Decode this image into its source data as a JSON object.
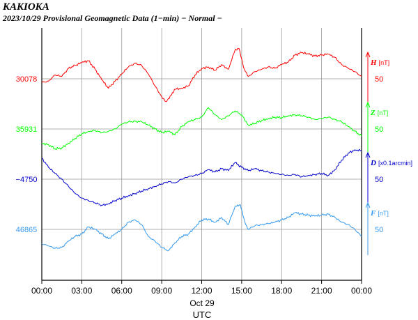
{
  "header": {
    "station": "KAKIOKA",
    "subtitle": "2023/10/29  Provisional Geomagnetic Data (1−min)  − Normal −"
  },
  "chart_data": {
    "type": "line",
    "xlabel": "UTC",
    "date_label": "Oct 29",
    "x_ticks": [
      "00:00",
      "03:00",
      "06:00",
      "09:00",
      "12:00",
      "15:00",
      "18:00",
      "21:00",
      "00:00"
    ],
    "x_range_hours": [
      0,
      24
    ],
    "grid": true,
    "series": [
      {
        "name": "H",
        "unit": "[nT]",
        "color": "#ff0000",
        "base": "30078",
        "scale": "50",
        "scale_value": 50,
        "points": [
          [
            0,
            -8
          ],
          [
            0.5,
            -5
          ],
          [
            1,
            8
          ],
          [
            1.5,
            5
          ],
          [
            2,
            22
          ],
          [
            2.5,
            28
          ],
          [
            3,
            34
          ],
          [
            3.5,
            38
          ],
          [
            4,
            20
          ],
          [
            4.5,
            -2
          ],
          [
            5,
            -20
          ],
          [
            5.5,
            -5
          ],
          [
            6,
            10
          ],
          [
            6.5,
            25
          ],
          [
            7,
            33
          ],
          [
            7.5,
            28
          ],
          [
            8,
            10
          ],
          [
            8.5,
            -15
          ],
          [
            9,
            -38
          ],
          [
            9.3,
            -48
          ],
          [
            9.7,
            -35
          ],
          [
            10,
            -22
          ],
          [
            10.5,
            -20
          ],
          [
            11,
            -15
          ],
          [
            11.5,
            8
          ],
          [
            12,
            22
          ],
          [
            12.5,
            25
          ],
          [
            13,
            18
          ],
          [
            13.5,
            30
          ],
          [
            14,
            20
          ],
          [
            14.5,
            60
          ],
          [
            14.8,
            64
          ],
          [
            15.2,
            20
          ],
          [
            15.5,
            5
          ],
          [
            16,
            15
          ],
          [
            16.5,
            20
          ],
          [
            17,
            25
          ],
          [
            17.5,
            22
          ],
          [
            18,
            30
          ],
          [
            18.5,
            35
          ],
          [
            19,
            50
          ],
          [
            19.5,
            55
          ],
          [
            20,
            52
          ],
          [
            20.5,
            48
          ],
          [
            21,
            50
          ],
          [
            21.5,
            52
          ],
          [
            22,
            45
          ],
          [
            22.5,
            30
          ],
          [
            23,
            22
          ],
          [
            23.5,
            15
          ],
          [
            24,
            5
          ]
        ]
      },
      {
        "name": "Z",
        "unit": "[nT]",
        "color": "#00ff00",
        "base": "35931",
        "scale": "50",
        "scale_value": 50,
        "points": [
          [
            0,
            -30
          ],
          [
            0.5,
            -33
          ],
          [
            1,
            -42
          ],
          [
            1.5,
            -40
          ],
          [
            2,
            -30
          ],
          [
            2.5,
            -20
          ],
          [
            3,
            -10
          ],
          [
            3.5,
            -5
          ],
          [
            4,
            -3
          ],
          [
            4.5,
            -8
          ],
          [
            5,
            -5
          ],
          [
            5.5,
            0
          ],
          [
            6,
            10
          ],
          [
            6.5,
            15
          ],
          [
            7,
            16
          ],
          [
            7.5,
            15
          ],
          [
            8,
            8
          ],
          [
            8.5,
            0
          ],
          [
            9,
            -8
          ],
          [
            9.5,
            -5
          ],
          [
            10,
            -12
          ],
          [
            10.5,
            5
          ],
          [
            11,
            15
          ],
          [
            11.5,
            20
          ],
          [
            12,
            25
          ],
          [
            12.5,
            45
          ],
          [
            13,
            30
          ],
          [
            13.5,
            20
          ],
          [
            14,
            28
          ],
          [
            14.5,
            38
          ],
          [
            15,
            30
          ],
          [
            15.5,
            8
          ],
          [
            16,
            12
          ],
          [
            16.5,
            18
          ],
          [
            17,
            22
          ],
          [
            17.5,
            25
          ],
          [
            18,
            24
          ],
          [
            18.5,
            28
          ],
          [
            19,
            30
          ],
          [
            19.5,
            28
          ],
          [
            20,
            25
          ],
          [
            20.5,
            20
          ],
          [
            21,
            22
          ],
          [
            21.5,
            25
          ],
          [
            22,
            20
          ],
          [
            22.5,
            15
          ],
          [
            23,
            5
          ],
          [
            23.5,
            -5
          ],
          [
            24,
            -15
          ]
        ]
      },
      {
        "name": "D",
        "unit": "[x0.1arcmin]",
        "color": "#0000cc",
        "base": "−4750",
        "scale": "50",
        "scale_value": 50,
        "points": [
          [
            0,
            45
          ],
          [
            0.5,
            25
          ],
          [
            1,
            12
          ],
          [
            1.5,
            0
          ],
          [
            2,
            -15
          ],
          [
            2.5,
            -30
          ],
          [
            3,
            -40
          ],
          [
            3.5,
            -45
          ],
          [
            4,
            -50
          ],
          [
            4.5,
            -55
          ],
          [
            5,
            -52
          ],
          [
            5.5,
            -45
          ],
          [
            6,
            -40
          ],
          [
            6.5,
            -35
          ],
          [
            7,
            -30
          ],
          [
            7.5,
            -25
          ],
          [
            8,
            -20
          ],
          [
            8.5,
            -15
          ],
          [
            9,
            -10
          ],
          [
            9.5,
            -5
          ],
          [
            10,
            -8
          ],
          [
            10.5,
            0
          ],
          [
            11,
            5
          ],
          [
            11.5,
            8
          ],
          [
            12,
            12
          ],
          [
            12.5,
            20
          ],
          [
            13,
            15
          ],
          [
            13.5,
            22
          ],
          [
            14,
            18
          ],
          [
            14.5,
            35
          ],
          [
            15,
            25
          ],
          [
            15.5,
            18
          ],
          [
            16,
            22
          ],
          [
            16.5,
            18
          ],
          [
            17,
            15
          ],
          [
            17.5,
            12
          ],
          [
            18,
            10
          ],
          [
            18.5,
            8
          ],
          [
            19,
            10
          ],
          [
            19.5,
            5
          ],
          [
            20,
            8
          ],
          [
            20.5,
            10
          ],
          [
            21,
            12
          ],
          [
            21.5,
            8
          ],
          [
            22,
            20
          ],
          [
            22.5,
            40
          ],
          [
            23,
            55
          ],
          [
            23.5,
            62
          ],
          [
            24,
            60
          ]
        ]
      },
      {
        "name": "F",
        "unit": "[nT]",
        "color": "#3399ee",
        "base": "46865",
        "scale": "50",
        "scale_value": 50,
        "points": [
          [
            0,
            -30
          ],
          [
            0.5,
            -35
          ],
          [
            1,
            -40
          ],
          [
            1.5,
            -38
          ],
          [
            2,
            -25
          ],
          [
            2.5,
            -15
          ],
          [
            3,
            -10
          ],
          [
            3.5,
            5
          ],
          [
            4,
            0
          ],
          [
            4.5,
            -10
          ],
          [
            5,
            -20
          ],
          [
            5.5,
            -10
          ],
          [
            6,
            0
          ],
          [
            6.5,
            15
          ],
          [
            7,
            20
          ],
          [
            7.5,
            10
          ],
          [
            8,
            -15
          ],
          [
            8.5,
            -25
          ],
          [
            9,
            -38
          ],
          [
            9.5,
            -45
          ],
          [
            10,
            -28
          ],
          [
            10.5,
            -15
          ],
          [
            11,
            -10
          ],
          [
            11.5,
            5
          ],
          [
            12,
            20
          ],
          [
            12.5,
            22
          ],
          [
            13,
            15
          ],
          [
            13.5,
            25
          ],
          [
            14,
            10
          ],
          [
            14.5,
            48
          ],
          [
            14.9,
            52
          ],
          [
            15.3,
            10
          ],
          [
            15.5,
            0
          ],
          [
            16,
            8
          ],
          [
            16.5,
            10
          ],
          [
            17,
            12
          ],
          [
            17.5,
            15
          ],
          [
            18,
            20
          ],
          [
            18.5,
            25
          ],
          [
            19,
            35
          ],
          [
            19.5,
            32
          ],
          [
            20,
            30
          ],
          [
            20.5,
            28
          ],
          [
            21,
            30
          ],
          [
            21.5,
            32
          ],
          [
            22,
            25
          ],
          [
            22.5,
            15
          ],
          [
            23,
            10
          ],
          [
            23.5,
            0
          ],
          [
            24,
            -15
          ]
        ]
      }
    ]
  }
}
